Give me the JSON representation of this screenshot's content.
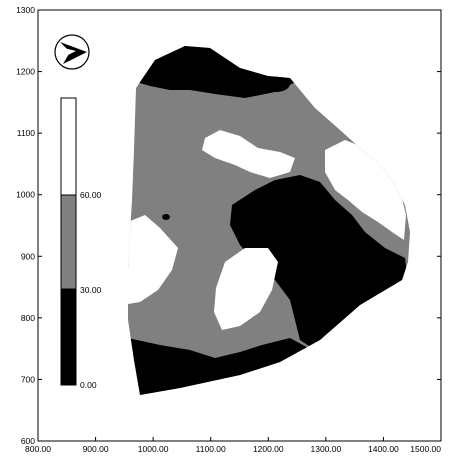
{
  "map": {
    "x_axis": {
      "range": [
        800,
        1500
      ],
      "ticks": [
        "800.00",
        "900.00",
        "1000.00",
        "1100.00",
        "1200.00",
        "1300.00",
        "1400.00",
        "1500.00"
      ]
    },
    "y_axis": {
      "range": [
        600,
        1300
      ],
      "ticks": [
        "600",
        "700",
        "800",
        "900",
        "1000",
        "1100",
        "1200",
        "1300"
      ]
    },
    "legend": {
      "labels": [
        "0.00",
        "30.00",
        "60.00"
      ],
      "classes": [
        {
          "range": "0.00–30.00",
          "color": "#000000"
        },
        {
          "range": "30.00–60.00",
          "color": "#808080"
        },
        {
          "range": "60.00+",
          "color": "#ffffff"
        }
      ]
    },
    "north_arrow_icon": "compass-north-arrow-icon",
    "colors": {
      "low": "#000000",
      "mid": "#808080",
      "high": "#ffffff"
    }
  }
}
